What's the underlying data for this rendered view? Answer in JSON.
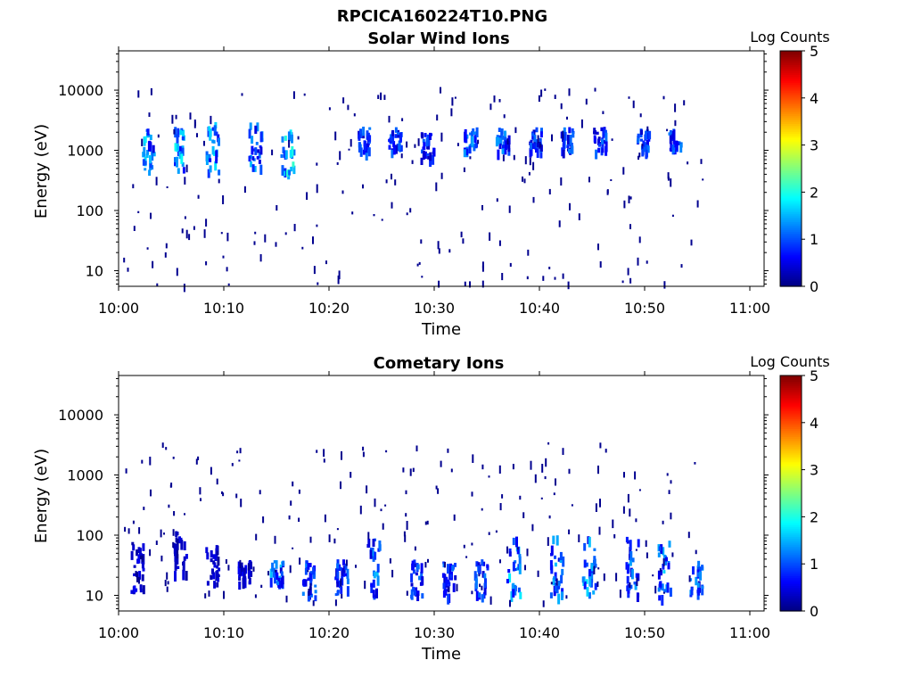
{
  "figure_title": "RPCICA160224T10.PNG",
  "colors": {
    "colormap": [
      "#00007f",
      "#0000ff",
      "#007fff",
      "#00ffff",
      "#7fff7f",
      "#ffff00",
      "#ff7f00",
      "#ff0000",
      "#7f0000"
    ]
  },
  "chart_data": [
    {
      "type": "heatmap",
      "title": "Solar Wind Ions",
      "xlabel": "Time",
      "ylabel": "Energy (eV)",
      "y_scale": "log",
      "xlim": [
        "10:00",
        "11:00"
      ],
      "x_ticks": [
        "10:00",
        "10:10",
        "10:20",
        "10:30",
        "10:40",
        "10:50",
        "11:00"
      ],
      "ylim": [
        5.5,
        45000
      ],
      "y_ticks": [
        10,
        100,
        1000,
        10000
      ],
      "y_tick_labels": [
        "10",
        "100",
        "1000",
        "10000"
      ],
      "colorbar": {
        "label": "Log Counts",
        "range": [
          0,
          5
        ],
        "ticks": [
          "0",
          "1",
          "2",
          "3",
          "4",
          "5"
        ]
      },
      "bursts": [
        {
          "t": "10:03",
          "e": [
            400,
            2500
          ],
          "peak": 1.8
        },
        {
          "t": "10:06",
          "e": [
            500,
            3000
          ],
          "peak": 2.0
        },
        {
          "t": "10:09",
          "e": [
            450,
            3000
          ],
          "peak": 2.0
        },
        {
          "t": "10:13",
          "e": [
            500,
            3000
          ],
          "peak": 1.6
        },
        {
          "t": "10:16",
          "e": [
            450,
            2500
          ],
          "peak": 2.2
        },
        {
          "t": "10:23",
          "e": [
            1000,
            2500
          ],
          "peak": 1.3
        },
        {
          "t": "10:26",
          "e": [
            1000,
            2500
          ],
          "peak": 1.2
        },
        {
          "t": "10:29",
          "e": [
            700,
            2200
          ],
          "peak": 1.2
        },
        {
          "t": "10:33",
          "e": [
            1000,
            2500
          ],
          "peak": 1.5
        },
        {
          "t": "10:36",
          "e": [
            1000,
            2500
          ],
          "peak": 1.5
        },
        {
          "t": "10:39",
          "e": [
            1000,
            2500
          ],
          "peak": 1.2
        },
        {
          "t": "10:42",
          "e": [
            1000,
            2500
          ],
          "peak": 1.3
        },
        {
          "t": "10:45",
          "e": [
            1000,
            2500
          ],
          "peak": 1.2
        },
        {
          "t": "10:49",
          "e": [
            1000,
            2500
          ],
          "peak": 1.2
        },
        {
          "t": "10:52",
          "e": [
            1000,
            2500
          ],
          "peak": 1.3
        }
      ]
    },
    {
      "type": "heatmap",
      "title": "Cometary Ions",
      "xlabel": "Time",
      "ylabel": "Energy (eV)",
      "y_scale": "log",
      "xlim": [
        "10:00",
        "11:00"
      ],
      "x_ticks": [
        "10:00",
        "10:10",
        "10:20",
        "10:30",
        "10:40",
        "10:50",
        "11:00"
      ],
      "ylim": [
        5.5,
        45000
      ],
      "y_ticks": [
        10,
        100,
        1000,
        10000
      ],
      "y_tick_labels": [
        "10",
        "100",
        "1000",
        "10000"
      ],
      "colorbar": {
        "label": "Log Counts",
        "range": [
          0,
          5
        ],
        "ticks": [
          "0",
          "1",
          "2",
          "3",
          "4",
          "5"
        ]
      },
      "bursts": [
        {
          "t": "10:02",
          "e": [
            12,
            80
          ],
          "peak": 0.6
        },
        {
          "t": "10:06",
          "e": [
            20,
            120
          ],
          "peak": 0.5
        },
        {
          "t": "10:09",
          "e": [
            15,
            80
          ],
          "peak": 0.5
        },
        {
          "t": "10:12",
          "e": [
            15,
            40
          ],
          "peak": 0.6
        },
        {
          "t": "10:15",
          "e": [
            15,
            40
          ],
          "peak": 1.6
        },
        {
          "t": "10:18",
          "e": [
            10,
            40
          ],
          "peak": 1.3
        },
        {
          "t": "10:21",
          "e": [
            10,
            40
          ],
          "peak": 1.3
        },
        {
          "t": "10:24",
          "e": [
            10,
            100
          ],
          "peak": 1.6
        },
        {
          "t": "10:28",
          "e": [
            10,
            40
          ],
          "peak": 1.2
        },
        {
          "t": "10:31",
          "e": [
            10,
            40
          ],
          "peak": 1.2
        },
        {
          "t": "10:34",
          "e": [
            10,
            40
          ],
          "peak": 1.3
        },
        {
          "t": "10:37",
          "e": [
            10,
            100
          ],
          "peak": 1.8
        },
        {
          "t": "10:41",
          "e": [
            10,
            100
          ],
          "peak": 1.6
        },
        {
          "t": "10:44",
          "e": [
            10,
            100
          ],
          "peak": 1.8
        },
        {
          "t": "10:48",
          "e": [
            10,
            100
          ],
          "peak": 1.5
        },
        {
          "t": "10:51",
          "e": [
            10,
            100
          ],
          "peak": 1.8
        },
        {
          "t": "10:54",
          "e": [
            10,
            40
          ],
          "peak": 1.4
        }
      ]
    }
  ]
}
